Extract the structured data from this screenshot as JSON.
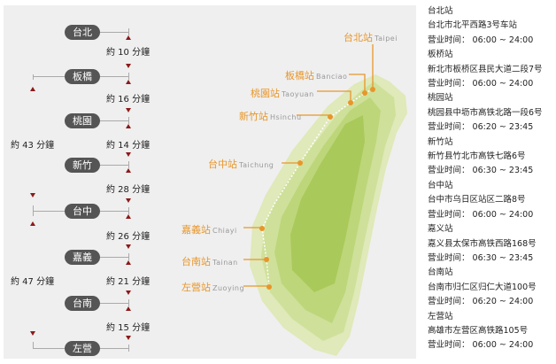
{
  "stations": [
    {
      "name": "台北",
      "map_cn": "台北站",
      "map_en": "Taipei",
      "info_name": "台北站",
      "address": "台北市北平西路3号车站",
      "hours": "营业时间： 06:00 ~ 24:00"
    },
    {
      "name": "板橋",
      "map_cn": "板橋站",
      "map_en": "Banciao",
      "info_name": "板桥站",
      "address": "新北市板桥区县民大道二段7号",
      "hours": "营业时间： 06:00 ~ 24:00"
    },
    {
      "name": "桃園",
      "map_cn": "桃園站",
      "map_en": "Taoyuan",
      "info_name": "桃园站",
      "address": "桃园县中坜市高铁北路一段6号",
      "hours": "营业时间： 06:20 ~ 23:45"
    },
    {
      "name": "新竹",
      "map_cn": "新竹站",
      "map_en": "Hsinchu",
      "info_name": "新竹站",
      "address": "新竹县竹北市高铁七路6号",
      "hours": "营业时间： 06:30 ~ 23:45"
    },
    {
      "name": "台中",
      "map_cn": "台中站",
      "map_en": "Taichung",
      "info_name": "台中站",
      "address": "台中市乌日区站区二路8号",
      "hours": "营业时间： 06:00 ~ 24:00"
    },
    {
      "name": "嘉義",
      "map_cn": "嘉義站",
      "map_en": "Chiayi",
      "info_name": "嘉义站",
      "address": "嘉义县太保市高铁西路168号",
      "hours": "营业时间： 06:30 ~ 23:45"
    },
    {
      "name": "台南",
      "map_cn": "台南站",
      "map_en": "Tainan",
      "info_name": "台南站",
      "address": "台南市归仁区归仁大道100号",
      "hours": "营业时间： 06:20 ~ 24:00"
    },
    {
      "name": "左營",
      "map_cn": "左營站",
      "map_en": "Zuoying",
      "info_name": "左营站",
      "address": "高雄市左营区高铁路105号",
      "hours": "营业时间： 06:00 ~ 24:00"
    }
  ],
  "segment_times": [
    "約 10 分鐘",
    "約 16 分鐘",
    "約 14 分鐘",
    "約 28 分鐘",
    "約 26 分鐘",
    "約 21 分鐘",
    "約 15 分鐘"
  ],
  "long_times": [
    "約 43 分鐘",
    "約 47 分鐘"
  ],
  "colors": {
    "accent": "#e8962a",
    "pill": "#555555",
    "arrow": "#8b1a1a"
  }
}
